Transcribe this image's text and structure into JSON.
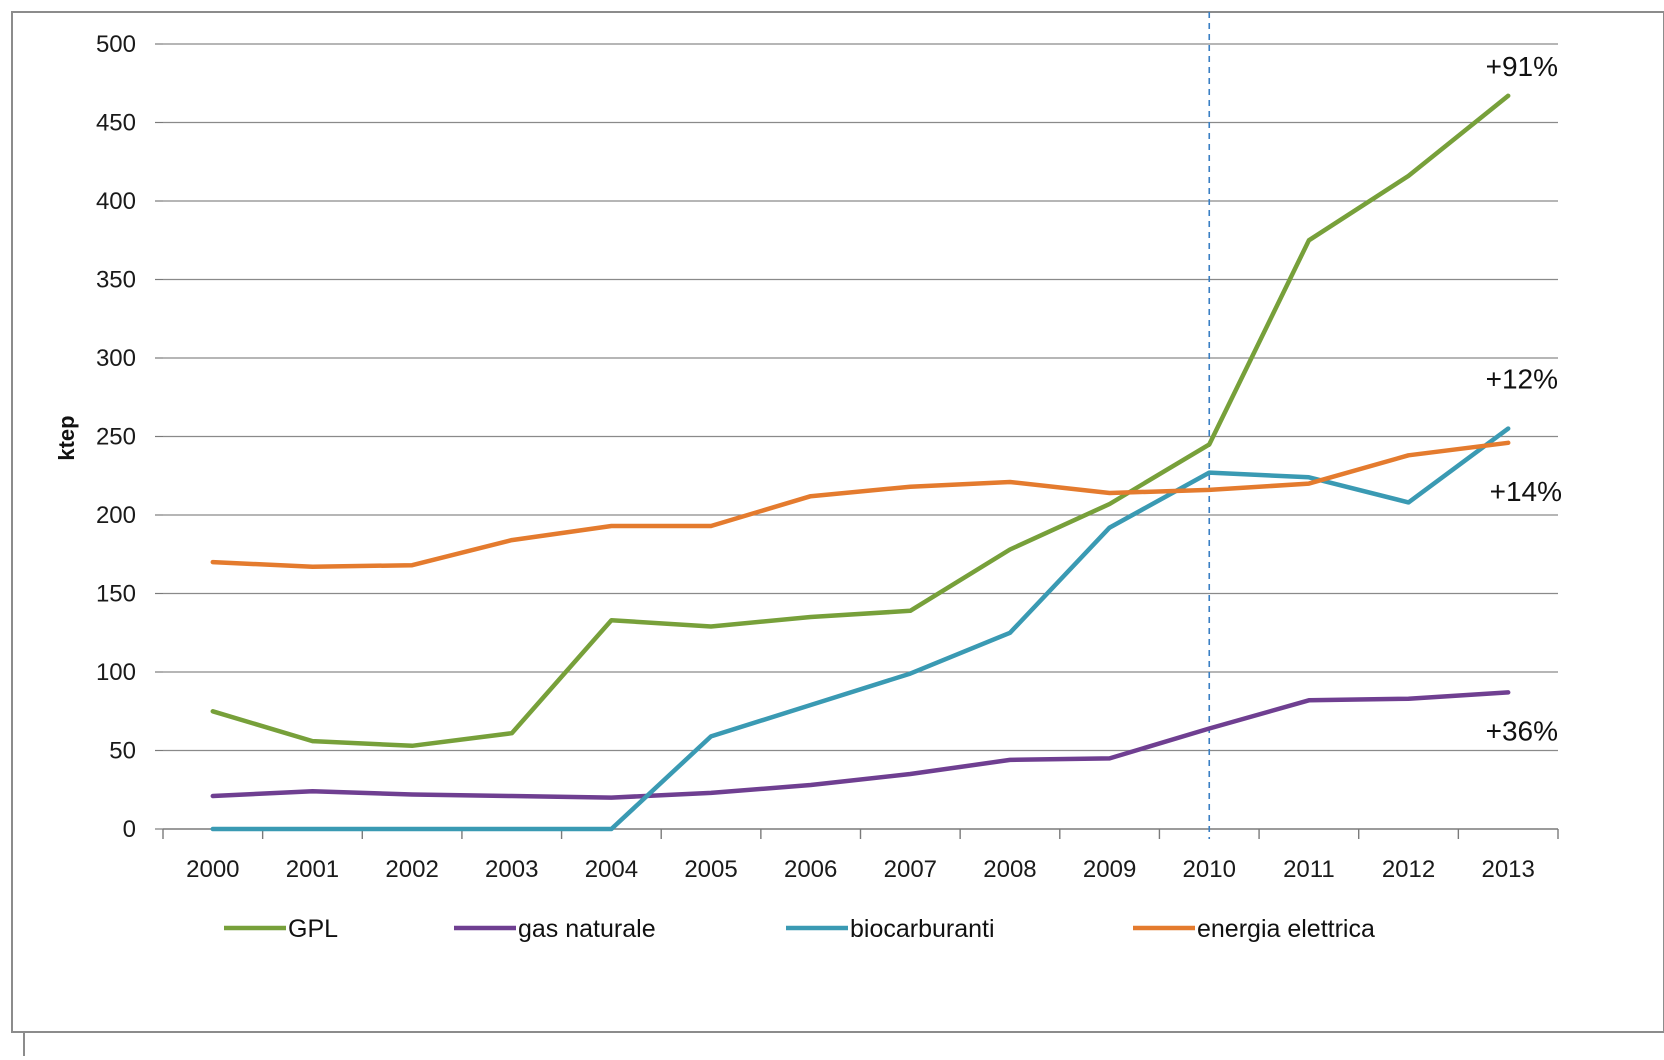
{
  "chart_data": {
    "type": "line",
    "ylabel": "ktep",
    "xlabel": "",
    "ylim": [
      0,
      500
    ],
    "yticks": [
      0,
      50,
      100,
      150,
      200,
      250,
      300,
      350,
      400,
      450,
      500
    ],
    "categories": [
      "2000",
      "2001",
      "2002",
      "2003",
      "2004",
      "2005",
      "2006",
      "2007",
      "2008",
      "2009",
      "2010",
      "2011",
      "2012",
      "2013"
    ],
    "series": [
      {
        "name": "GPL",
        "color": "#77a03a",
        "values": [
          75,
          56,
          53,
          61,
          133,
          129,
          135,
          139,
          178,
          207,
          245,
          375,
          416,
          467
        ]
      },
      {
        "name": "gas naturale",
        "color": "#6f3f91",
        "values": [
          21,
          24,
          22,
          21,
          20,
          23,
          28,
          35,
          44,
          45,
          64,
          82,
          83,
          87
        ]
      },
      {
        "name": "biocarburanti",
        "color": "#3a9ab3",
        "values": [
          0,
          0,
          0,
          0,
          0,
          59,
          79,
          99,
          125,
          192,
          227,
          224,
          208,
          255
        ]
      },
      {
        "name": "energia elettrica",
        "color": "#e47b2e",
        "values": [
          170,
          167,
          168,
          184,
          193,
          193,
          212,
          218,
          221,
          214,
          216,
          220,
          238,
          246
        ]
      }
    ],
    "reference_line": {
      "category": "2010",
      "style": "dashed",
      "color": "#3a7fc4"
    },
    "annotations": [
      {
        "text": "+91%",
        "series": "GPL"
      },
      {
        "text": "+12%",
        "series": "biocarburanti"
      },
      {
        "text": "+14%",
        "series": "energia elettrica"
      },
      {
        "text": "+36%",
        "series": "gas naturale"
      }
    ],
    "grid": "horizontal",
    "legend": "bottom"
  }
}
